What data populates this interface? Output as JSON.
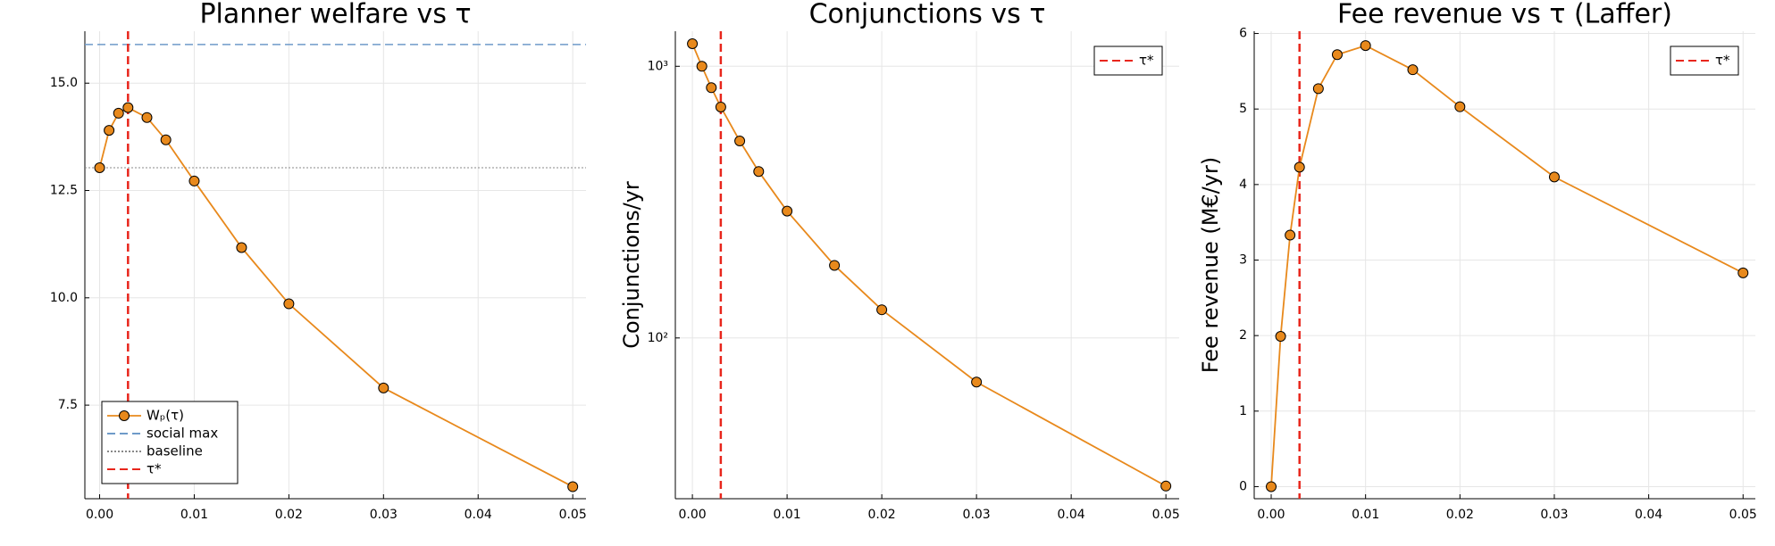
{
  "chart_data": [
    {
      "type": "line",
      "title": "Planner welfare vs τ",
      "x": [
        0,
        0.001,
        0.002,
        0.003,
        0.005,
        0.007,
        0.01,
        0.015,
        0.02,
        0.03,
        0.05
      ],
      "series": [
        {
          "name": "Wₚ(τ)",
          "color": "#e8891c",
          "values": [
            13.03,
            13.9,
            14.3,
            14.43,
            14.2,
            13.68,
            12.72,
            11.17,
            9.86,
            7.9,
            5.6
          ]
        }
      ],
      "hlines": [
        {
          "name": "social max",
          "value": 15.9,
          "color": "#6f9bc9",
          "dash": "dashed"
        },
        {
          "name": "baseline",
          "value": 13.03,
          "color": "#888888",
          "dash": "dotted"
        }
      ],
      "vlines": [
        {
          "name": "τ*",
          "value": 0.003,
          "color": "#e8261c",
          "dash": "dashed"
        }
      ],
      "xlim": [
        -0.00156,
        0.0514
      ],
      "ylim": [
        5.32,
        16.21
      ],
      "xticks": [
        {
          "value": 0,
          "label": "0.00"
        },
        {
          "value": 0.01,
          "label": "0.01"
        },
        {
          "value": 0.02,
          "label": "0.02"
        },
        {
          "value": 0.03,
          "label": "0.03"
        },
        {
          "value": 0.04,
          "label": "0.04"
        },
        {
          "value": 0.05,
          "label": "0.05"
        }
      ],
      "yticks": [
        {
          "value": 7.5,
          "label": "7.5"
        },
        {
          "value": 10,
          "label": "10.0"
        },
        {
          "value": 12.5,
          "label": "12.5"
        },
        {
          "value": 15,
          "label": "15.0"
        }
      ],
      "grid": true,
      "legend": "bottom left"
    },
    {
      "type": "line",
      "title": "Conjunctions vs τ",
      "y_label": "Conjunctions/yr",
      "x": [
        0,
        0.001,
        0.002,
        0.003,
        0.005,
        0.007,
        0.01,
        0.015,
        0.02,
        0.03,
        0.05
      ],
      "series": [
        {
          "color": "#e8891c",
          "values": [
            1211,
            1000,
            834,
            708,
            531,
            410,
            293,
            185,
            127,
            68.8,
            28.5
          ]
        }
      ],
      "vlines": [
        {
          "name": "τ*",
          "value": 0.003,
          "color": "#e8261c",
          "dash": "dashed"
        }
      ],
      "xlim": [
        -0.0018,
        0.0514
      ],
      "ylim": [
        25.6,
        1346
      ],
      "yscale": "log",
      "xticks": [
        {
          "value": 0,
          "label": "0.00"
        },
        {
          "value": 0.01,
          "label": "0.01"
        },
        {
          "value": 0.02,
          "label": "0.02"
        },
        {
          "value": 0.03,
          "label": "0.03"
        },
        {
          "value": 0.04,
          "label": "0.04"
        },
        {
          "value": 0.05,
          "label": "0.05"
        }
      ],
      "yticks": [
        {
          "value": 100,
          "label": "10²"
        },
        {
          "value": 1000,
          "label": "10³"
        }
      ],
      "grid": true,
      "legend": "top right"
    },
    {
      "type": "line",
      "title": "Fee revenue vs τ (Laffer)",
      "y_label": "Fee revenue (M€/yr)",
      "x": [
        0,
        0.001,
        0.002,
        0.003,
        0.005,
        0.007,
        0.01,
        0.015,
        0.02,
        0.03,
        0.05
      ],
      "series": [
        {
          "color": "#e8891c",
          "values": [
            0,
            1.99,
            3.33,
            4.23,
            5.27,
            5.72,
            5.84,
            5.52,
            5.03,
            4.1,
            2.83
          ]
        }
      ],
      "vlines": [
        {
          "name": "τ*",
          "value": 0.003,
          "color": "#e8261c",
          "dash": "dashed"
        }
      ],
      "xlim": [
        -0.0018,
        0.0513
      ],
      "ylim": [
        -0.16,
        6.03
      ],
      "xticks": [
        {
          "value": 0,
          "label": "0.00"
        },
        {
          "value": 0.01,
          "label": "0.01"
        },
        {
          "value": 0.02,
          "label": "0.02"
        },
        {
          "value": 0.03,
          "label": "0.03"
        },
        {
          "value": 0.04,
          "label": "0.04"
        },
        {
          "value": 0.05,
          "label": "0.05"
        }
      ],
      "yticks": [
        0,
        1,
        2,
        3,
        4,
        5,
        6
      ],
      "grid": true,
      "legend": "top right"
    }
  ]
}
